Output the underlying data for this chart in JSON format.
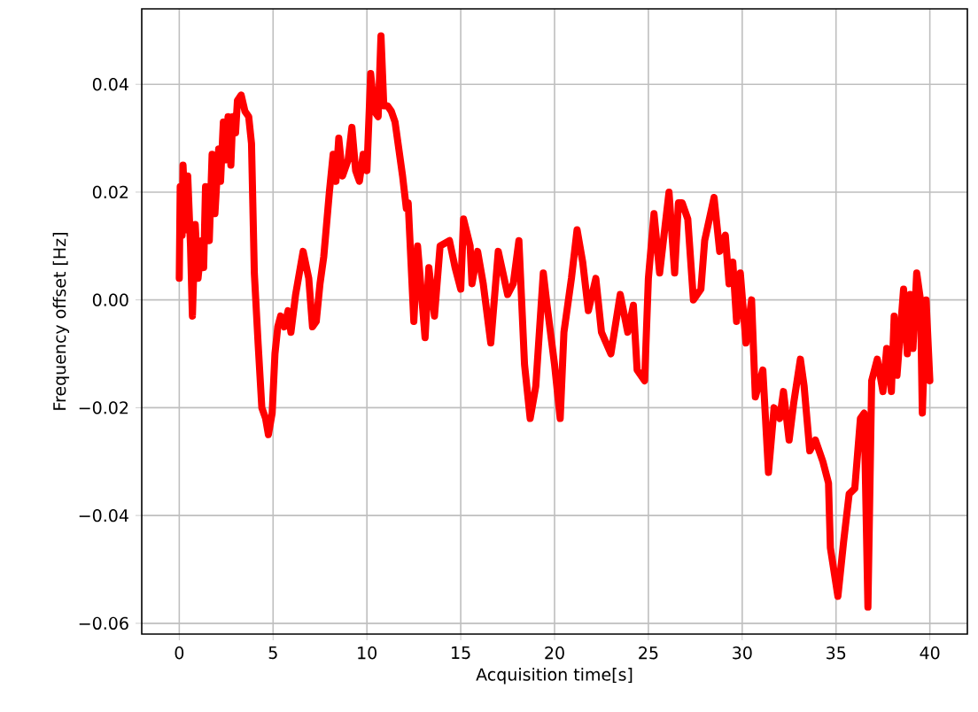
{
  "chart_data": {
    "type": "line",
    "xlabel": "Acquisition time[s]",
    "ylabel": "Frequency offset [Hz]",
    "x": [
      0.0,
      0.05,
      0.15,
      0.2,
      0.35,
      0.45,
      0.6,
      0.7,
      0.85,
      1.0,
      1.2,
      1.3,
      1.4,
      1.6,
      1.75,
      1.9,
      2.1,
      2.2,
      2.35,
      2.5,
      2.6,
      2.75,
      2.85,
      3.0,
      3.1,
      3.3,
      3.5,
      3.7,
      3.85,
      4.0,
      4.2,
      4.4,
      4.6,
      4.75,
      4.95,
      5.1,
      5.25,
      5.4,
      5.6,
      5.8,
      5.95,
      6.2,
      6.6,
      6.9,
      7.1,
      7.3,
      7.5,
      7.7,
      8.0,
      8.2,
      8.35,
      8.5,
      8.7,
      9.0,
      9.2,
      9.4,
      9.6,
      9.8,
      10.0,
      10.2,
      10.4,
      10.6,
      10.75,
      10.9,
      11.1,
      11.3,
      11.5,
      11.9,
      12.1,
      12.2,
      12.5,
      12.7,
      13.1,
      13.3,
      13.6,
      13.9,
      14.4,
      14.7,
      15.0,
      15.15,
      15.5,
      15.6,
      15.9,
      16.2,
      16.6,
      17.0,
      17.5,
      17.8,
      18.1,
      18.4,
      18.7,
      19.0,
      19.4,
      19.6,
      20.0,
      20.3,
      20.5,
      20.9,
      21.2,
      21.5,
      21.8,
      22.2,
      22.5,
      23.0,
      23.5,
      23.9,
      24.2,
      24.4,
      24.8,
      25.0,
      25.3,
      25.6,
      26.1,
      26.4,
      26.6,
      26.8,
      27.1,
      27.4,
      27.8,
      28.0,
      28.5,
      28.8,
      29.1,
      29.3,
      29.5,
      29.7,
      29.9,
      30.2,
      30.5,
      30.7,
      31.1,
      31.4,
      31.7,
      32.0,
      32.2,
      32.5,
      32.75,
      33.1,
      33.3,
      33.6,
      33.9,
      34.3,
      34.6,
      34.7,
      35.1,
      35.4,
      35.7,
      36.0,
      36.3,
      36.5,
      36.7,
      36.9,
      37.2,
      37.5,
      37.7,
      37.95,
      38.1,
      38.25,
      38.6,
      38.8,
      38.95,
      39.1,
      39.3,
      39.5,
      39.6,
      39.8,
      40.0
    ],
    "series": [
      {
        "color": "#ff0000",
        "values": [
          0.004,
          0.021,
          0.012,
          0.025,
          0.013,
          0.023,
          0.01,
          -0.003,
          0.014,
          0.004,
          0.011,
          0.006,
          0.021,
          0.011,
          0.027,
          0.016,
          0.028,
          0.022,
          0.033,
          0.026,
          0.034,
          0.025,
          0.034,
          0.031,
          0.037,
          0.038,
          0.035,
          0.034,
          0.029,
          0.005,
          -0.008,
          -0.02,
          -0.022,
          -0.025,
          -0.021,
          -0.01,
          -0.005,
          -0.003,
          -0.005,
          -0.002,
          -0.006,
          0.001,
          0.009,
          0.004,
          -0.005,
          -0.004,
          0.003,
          0.008,
          0.02,
          0.027,
          0.022,
          0.03,
          0.023,
          0.026,
          0.032,
          0.024,
          0.022,
          0.027,
          0.024,
          0.042,
          0.035,
          0.034,
          0.049,
          0.036,
          0.036,
          0.035,
          0.033,
          0.023,
          0.017,
          0.018,
          -0.004,
          0.01,
          -0.007,
          0.006,
          -0.003,
          0.01,
          0.011,
          0.006,
          0.002,
          0.015,
          0.01,
          0.003,
          0.009,
          0.003,
          -0.008,
          0.009,
          0.001,
          0.003,
          0.011,
          -0.012,
          -0.022,
          -0.016,
          0.005,
          -0.001,
          -0.012,
          -0.022,
          -0.006,
          0.004,
          0.013,
          0.007,
          -0.002,
          0.004,
          -0.006,
          -0.01,
          0.001,
          -0.006,
          -0.001,
          -0.013,
          -0.015,
          0.004,
          0.016,
          0.005,
          0.02,
          0.005,
          0.018,
          0.018,
          0.015,
          0.0,
          0.002,
          0.011,
          0.019,
          0.009,
          0.012,
          0.003,
          0.007,
          -0.004,
          0.005,
          -0.008,
          0.0,
          -0.018,
          -0.013,
          -0.032,
          -0.02,
          -0.022,
          -0.017,
          -0.026,
          -0.019,
          -0.011,
          -0.016,
          -0.028,
          -0.026,
          -0.03,
          -0.034,
          -0.046,
          -0.055,
          -0.045,
          -0.036,
          -0.035,
          -0.022,
          -0.021,
          -0.057,
          -0.015,
          -0.011,
          -0.017,
          -0.009,
          -0.017,
          -0.003,
          -0.014,
          0.002,
          -0.01,
          0.001,
          -0.009,
          0.005,
          0.0,
          -0.021,
          0.0,
          -0.015
        ]
      }
    ],
    "xlim": [
      -2,
      42
    ],
    "ylim": [
      -0.062,
      0.054
    ],
    "xticks": [
      0,
      5,
      10,
      15,
      20,
      25,
      30,
      35,
      40
    ],
    "yticks": [
      {
        "value": -0.06,
        "label": "−0.06"
      },
      {
        "value": -0.04,
        "label": "−0.04"
      },
      {
        "value": -0.02,
        "label": "−0.02"
      },
      {
        "value": 0.0,
        "label": "0.00"
      },
      {
        "value": 0.02,
        "label": "0.02"
      },
      {
        "value": 0.04,
        "label": "0.04"
      }
    ],
    "grid": true
  }
}
